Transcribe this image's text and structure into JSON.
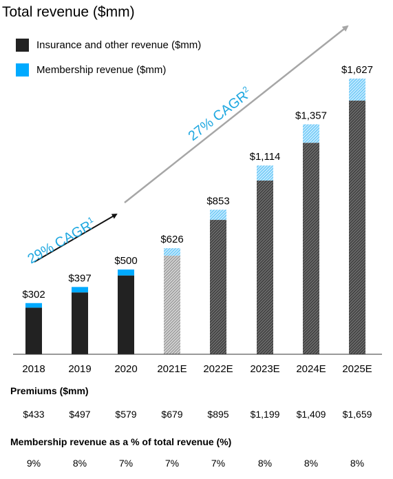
{
  "chart_data": {
    "type": "bar",
    "title": "Total revenue ($mm)",
    "categories": [
      "2018",
      "2019",
      "2020",
      "2021E",
      "2022E",
      "2023E",
      "2024E",
      "2025E"
    ],
    "series": [
      {
        "name": "Insurance and other revenue ($mm)",
        "values": [
          275,
          365,
          465,
          582,
          793,
          1025,
          1248,
          1497
        ]
      },
      {
        "name": "Membership revenue ($mm)",
        "values": [
          27,
          32,
          35,
          44,
          60,
          89,
          109,
          130
        ]
      }
    ],
    "totals": [
      "$302",
      "$397",
      "$500",
      "$626",
      "$853",
      "$1,114",
      "$1,357",
      "$1,627"
    ],
    "estimated_from_index": 3,
    "ylim": [
      0,
      1800
    ],
    "grid": false,
    "legend_position": "top-left",
    "colors": {
      "insurance": "#222222",
      "membership": "#00aaff",
      "arrow_historic": "#111111",
      "arrow_forecast": "#a6a6a6",
      "cagr_text": "#1ea7e0"
    },
    "annotations": [
      {
        "text": "29% CAGR",
        "superscript": "1"
      },
      {
        "text": "27% CAGR",
        "superscript": "2"
      }
    ]
  },
  "table": {
    "premiums": {
      "title": "Premiums ($mm)",
      "values": [
        "$433",
        "$497",
        "$579",
        "$679",
        "$895",
        "$1,199",
        "$1,409",
        "$1,659"
      ]
    },
    "membership_pct": {
      "title": "Membership revenue as a % of total revenue (%)",
      "values": [
        "9%",
        "8%",
        "7%",
        "7%",
        "7%",
        "8%",
        "8%",
        "8%"
      ]
    }
  }
}
